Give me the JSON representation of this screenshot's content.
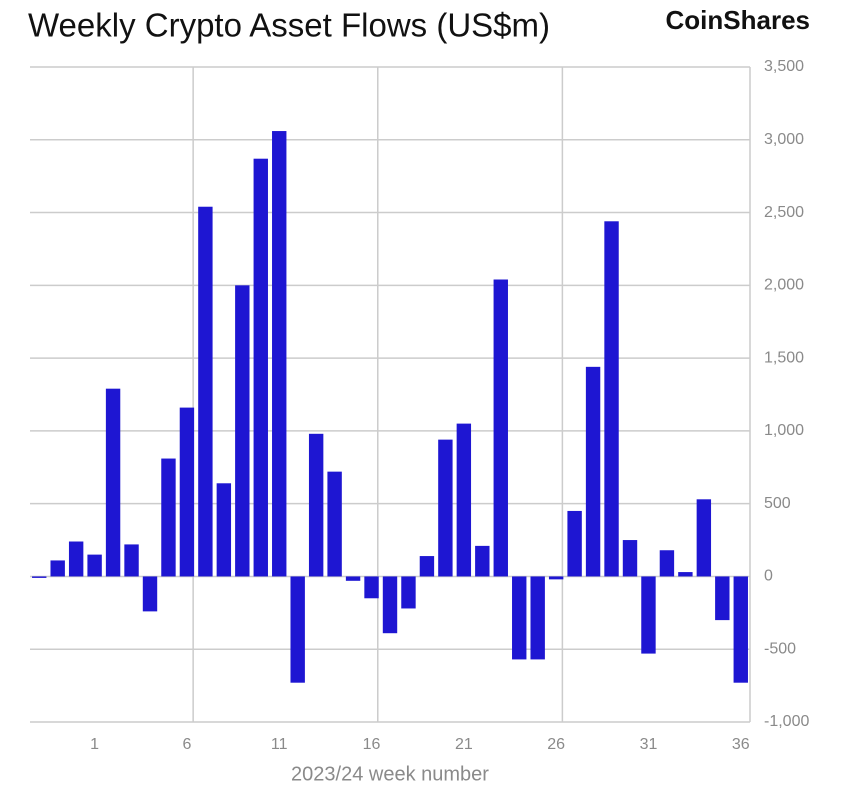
{
  "chart_data": {
    "type": "bar",
    "title": "Weekly Crypto Asset Flows (US$m)",
    "brand": "CoinShares",
    "x_label": "2023/24 week number",
    "categories": [
      null,
      null,
      null,
      "1",
      null,
      null,
      null,
      null,
      "6",
      null,
      null,
      null,
      null,
      "11",
      null,
      null,
      null,
      null,
      "16",
      null,
      null,
      null,
      null,
      "21",
      null,
      null,
      null,
      null,
      "26",
      null,
      null,
      null,
      null,
      "31",
      null,
      null,
      null,
      null,
      "36"
    ],
    "values": [
      -10,
      110,
      240,
      150,
      1290,
      220,
      -240,
      810,
      1160,
      2540,
      640,
      2000,
      2870,
      3060,
      -730,
      980,
      720,
      -30,
      -150,
      -390,
      -220,
      140,
      940,
      1050,
      210,
      2040,
      -570,
      -570,
      -20,
      450,
      1440,
      2440,
      250,
      -530,
      180,
      30,
      530,
      -300,
      -730
    ],
    "color": "#1e16d2",
    "ylim": [
      -1000,
      3500
    ],
    "yticks": [
      {
        "value": -1000,
        "label": "-1,000"
      },
      -500,
      0,
      500,
      {
        "value": 1000,
        "label": "1,000"
      },
      {
        "value": 1500,
        "label": "1,500"
      },
      {
        "value": 2000,
        "label": "2,000"
      },
      {
        "value": 2500,
        "label": "2,500"
      },
      {
        "value": 3000,
        "label": "3,000"
      },
      {
        "value": 3500,
        "label": "3,500"
      }
    ],
    "grid": true
  }
}
